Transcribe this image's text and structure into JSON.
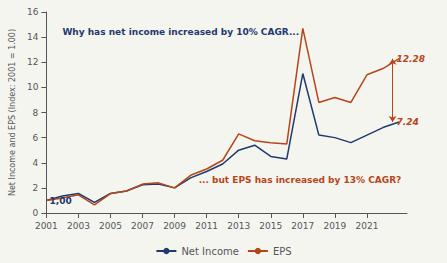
{
  "chart_data": {
    "type": "line",
    "x": [
      2001,
      2002,
      2003,
      2004,
      2005,
      2006,
      2007,
      2008,
      2009,
      2010,
      2011,
      2012,
      2013,
      2014,
      2015,
      2016,
      2017,
      2018,
      2019,
      2020,
      2021,
      2022,
      2023
    ],
    "series": [
      {
        "name": "Net Income",
        "color": "#1f3a6e",
        "values": [
          1.0,
          1.35,
          1.55,
          0.85,
          1.55,
          1.75,
          2.25,
          2.3,
          2.0,
          2.8,
          3.3,
          3.9,
          5.0,
          5.4,
          4.5,
          4.3,
          11.1,
          6.2,
          6.0,
          5.6,
          6.2,
          6.8,
          7.24
        ]
      },
      {
        "name": "EPS",
        "color": "#b5461b",
        "values": [
          1.0,
          1.2,
          1.45,
          0.65,
          1.55,
          1.75,
          2.3,
          2.4,
          2.0,
          3.0,
          3.5,
          4.2,
          6.3,
          5.75,
          5.6,
          5.5,
          14.7,
          8.8,
          9.2,
          8.8,
          11.0,
          11.5,
          12.28
        ]
      }
    ],
    "xlim": [
      2001,
      2023.5
    ],
    "xticks": [
      2001,
      2003,
      2005,
      2007,
      2009,
      2011,
      2013,
      2015,
      2017,
      2019,
      2021
    ],
    "ylim": [
      0,
      16
    ],
    "yticks": [
      0,
      2,
      4,
      6,
      8,
      10,
      12,
      14,
      16
    ],
    "ylabel": "Net Income and EPS (Index: 2001 = 1.00)",
    "annotations": [
      {
        "text": "1,00",
        "x": 2001.2,
        "y": 1.35,
        "color": "#1f3a6e"
      },
      {
        "text": "Why has net income increased by 10% CAGR...",
        "x": 2002.0,
        "y": 14.8,
        "color": "#1f3a6e"
      },
      {
        "text": "... but EPS has increased by 13% CAGR?",
        "x": 2010.5,
        "y": 3.0,
        "color": "#b5461b"
      }
    ],
    "arrow": {
      "x": 2022.6,
      "from": 7.24,
      "to": 12.28,
      "color": "#b5461b",
      "labels": [
        "7.24",
        "12.28"
      ]
    },
    "grid": false,
    "legend": "bottom"
  }
}
